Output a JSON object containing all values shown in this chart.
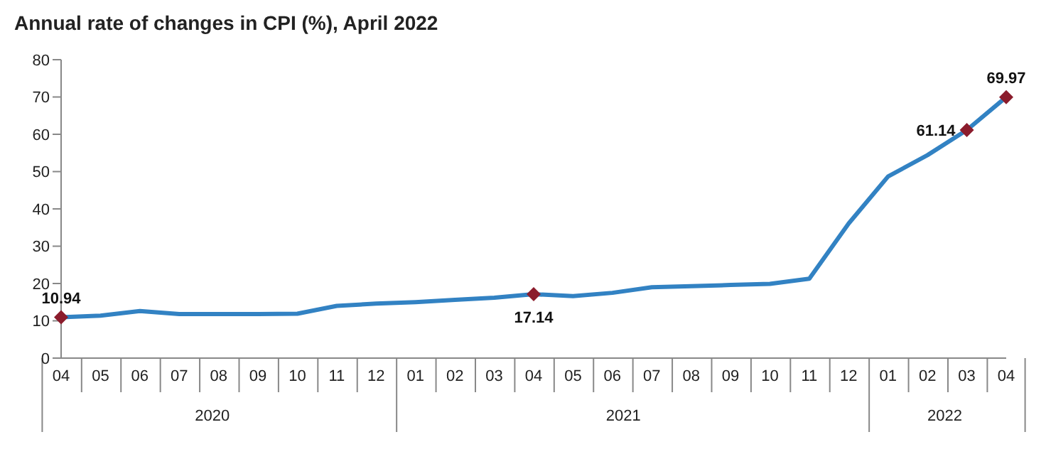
{
  "chart_data": {
    "type": "line",
    "title": "Annual rate of changes in CPI (%), April 2022",
    "categories": [
      "04",
      "05",
      "06",
      "07",
      "08",
      "09",
      "10",
      "11",
      "12",
      "01",
      "02",
      "03",
      "04",
      "05",
      "06",
      "07",
      "08",
      "09",
      "10",
      "11",
      "12",
      "01",
      "02",
      "03",
      "04"
    ],
    "annotations": [
      "2020",
      "2021",
      "2022"
    ],
    "series": [
      {
        "color": "#3282c3",
        "marker": "none",
        "values": [
          10.94,
          11.4,
          12.6,
          11.8,
          11.8,
          11.8,
          11.9,
          14.0,
          14.6,
          15.0,
          15.6,
          16.2,
          17.14,
          16.6,
          17.5,
          19.0,
          19.3,
          19.6,
          19.9,
          21.3,
          36.1,
          48.7,
          54.4,
          61.14,
          69.97
        ]
      },
      {
        "type": "scatter",
        "color": "#8b1c2c",
        "marker": "diamond",
        "values": [
          10.94,
          null,
          null,
          null,
          null,
          null,
          null,
          null,
          null,
          null,
          null,
          null,
          17.14,
          null,
          null,
          null,
          null,
          null,
          null,
          null,
          null,
          null,
          null,
          61.14,
          69.97
        ],
        "value_labels": [
          "10.94",
          null,
          null,
          null,
          null,
          null,
          null,
          null,
          null,
          null,
          null,
          null,
          "17.14",
          null,
          null,
          null,
          null,
          null,
          null,
          null,
          null,
          null,
          null,
          "61.14",
          "69.97"
        ]
      }
    ],
    "ylim": [
      0,
      80
    ],
    "yticks": [
      0,
      10,
      20,
      30,
      40,
      50,
      60,
      70,
      80
    ]
  }
}
